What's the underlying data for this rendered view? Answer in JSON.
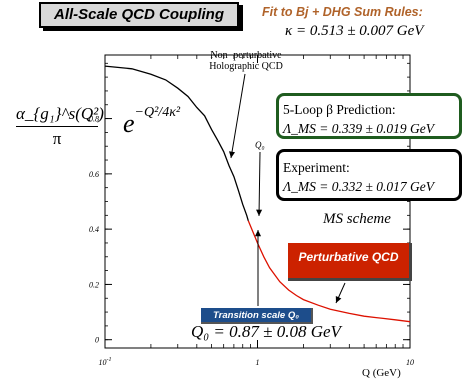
{
  "title_box": "All-Scale QCD Coupling",
  "fit": {
    "title": "Fit to Bj + DHG Sum Rules:",
    "kappa": "κ = 0.513 ± 0.007 GeV"
  },
  "ylabel": {
    "numerator": "α_{g₁}^s(Q²)",
    "denominator": "π"
  },
  "gaussian": {
    "base": "e",
    "exponent": "−Q²/4κ²"
  },
  "annotations": {
    "nonpert": "Non−perturbative Holographic QCD",
    "q0": "Q₀",
    "loop_title": "5-Loop β Prediction:",
    "loop_value": "Λ_MS = 0.339 ± 0.019 GeV",
    "exp_title": "Experiment:",
    "exp_value": "Λ_MS = 0.332 ± 0.017 GeV",
    "scheme": "MS scheme",
    "pert": "Perturbative QCD",
    "transition": "Transition scale Q₀",
    "q0_value": "Q₀ = 0.87 ± 0.08 GeV",
    "xunit": "Q (GeV)"
  },
  "colors": {
    "nonpert_curve": "#000000",
    "pert_curve": "#dd1100",
    "loop_border": "#1f5c1f",
    "pert_box": "#cc2200",
    "transition_box": "#1d4d8b",
    "fit_title": "#b0632a"
  },
  "chart_data": {
    "type": "line",
    "x_scale": "log",
    "xlim": [
      0.1,
      10
    ],
    "ylim": [
      -0.03,
      1.03
    ],
    "x_ticks": [
      {
        "value": 0.1,
        "label": "10-1"
      },
      {
        "value": 1,
        "label": "1"
      },
      {
        "value": 10,
        "label": "10"
      }
    ],
    "y_ticks": [
      {
        "value": 0,
        "label": "0"
      },
      {
        "value": 0.2,
        "label": "0.2"
      },
      {
        "value": 0.4,
        "label": "0.4"
      },
      {
        "value": 0.6,
        "label": "0.6"
      },
      {
        "value": 0.8,
        "label": "0.8"
      }
    ],
    "series": [
      {
        "key": "nonpert",
        "x": [
          0.1,
          0.15,
          0.2,
          0.25,
          0.3,
          0.35,
          0.4,
          0.45,
          0.5,
          0.55,
          0.6,
          0.65,
          0.7,
          0.75,
          0.8,
          0.85,
          0.87
        ],
        "y": [
          0.99,
          0.98,
          0.96,
          0.94,
          0.91,
          0.88,
          0.84,
          0.81,
          0.76,
          0.72,
          0.68,
          0.63,
          0.59,
          0.54,
          0.49,
          0.45,
          0.43
        ]
      },
      {
        "key": "pert",
        "x": [
          0.87,
          0.95,
          1.0,
          1.1,
          1.2,
          1.4,
          1.6,
          1.8,
          2.0,
          2.5,
          3.0,
          4.0,
          5.0,
          6.0,
          8.0,
          10.0
        ],
        "y": [
          0.43,
          0.38,
          0.35,
          0.3,
          0.26,
          0.21,
          0.18,
          0.16,
          0.145,
          0.125,
          0.11,
          0.095,
          0.085,
          0.08,
          0.072,
          0.065
        ]
      }
    ]
  }
}
